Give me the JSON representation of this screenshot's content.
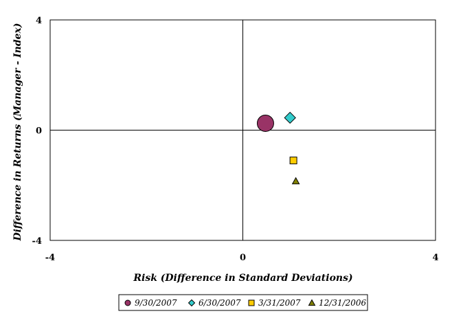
{
  "chart_data": {
    "type": "scatter",
    "xlabel": "Risk (Difference in Standard Deviations)",
    "ylabel": "Difference in Returns (Manager - Index)",
    "xlim": [
      -4,
      4
    ],
    "ylim": [
      -4,
      4
    ],
    "x_ticks": [
      "-4",
      "0",
      "4"
    ],
    "y_ticks": [
      "4",
      "0",
      "-4"
    ],
    "grid": false,
    "quadrant_lines": true,
    "legend_position": "bottom",
    "series": [
      {
        "name": "9/30/2007",
        "x": 0.47,
        "y": 0.25,
        "marker": "circle",
        "color": "#993366"
      },
      {
        "name": "6/30/2007",
        "x": 0.98,
        "y": 0.45,
        "marker": "diamond",
        "color": "#33cccc"
      },
      {
        "name": "3/31/2007",
        "x": 1.05,
        "y": -1.1,
        "marker": "square",
        "color": "#ffcc00"
      },
      {
        "name": "12/31/2006",
        "x": 1.1,
        "y": -1.85,
        "marker": "triangle",
        "color": "#808000"
      }
    ]
  }
}
